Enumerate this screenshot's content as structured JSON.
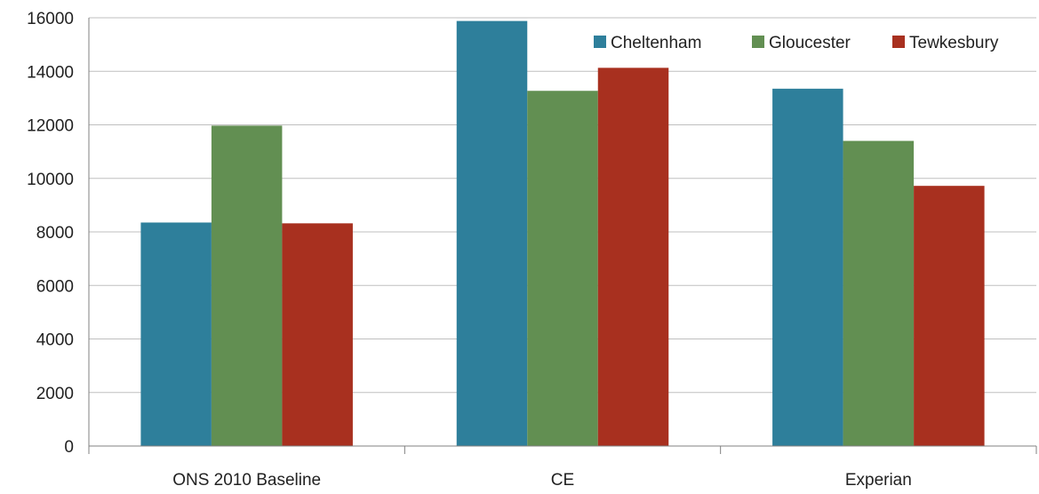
{
  "chart_data": {
    "type": "bar",
    "categories": [
      "ONS 2010 Baseline",
      "CE",
      "Experian"
    ],
    "series": [
      {
        "name": "Cheltenham",
        "color": "#2e7f9b",
        "values": [
          8350,
          15880,
          13350
        ]
      },
      {
        "name": "Gloucester",
        "color": "#628f52",
        "values": [
          11970,
          13270,
          11400
        ]
      },
      {
        "name": "Tewkesbury",
        "color": "#a8301f",
        "values": [
          8320,
          14130,
          9720
        ]
      }
    ],
    "ylim": [
      0,
      16000
    ],
    "yticks": [
      "0",
      "2000",
      "4000",
      "6000",
      "8000",
      "10000",
      "12000",
      "14000",
      "16000"
    ],
    "grid": true,
    "legend_position": "top-right"
  }
}
